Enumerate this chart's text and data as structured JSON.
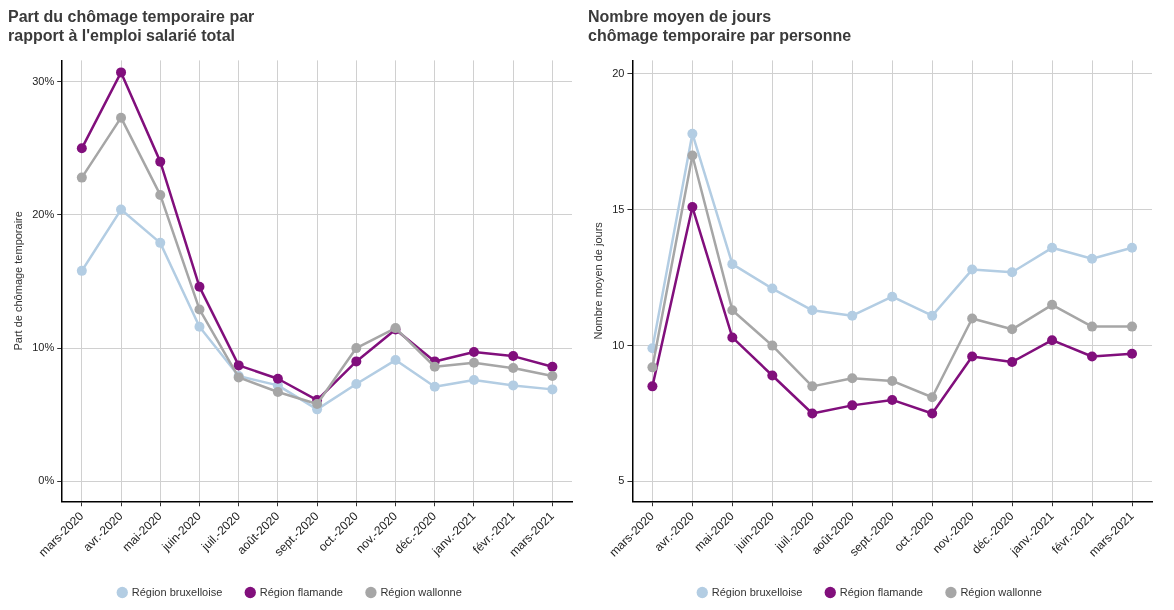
{
  "chart_data": [
    {
      "type": "line",
      "title": "Part du chômage temporaire par\nrapport à l'emploi salarié total",
      "ylabel": "Part de chômage temporaire",
      "categories": [
        "mars-2020",
        "avr.-2020",
        "mai-2020",
        "juin-2020",
        "juil.-2020",
        "août-2020",
        "sept.-2020",
        "oct.-2020",
        "nov.-2020",
        "déc.-2020",
        "janv.-2021",
        "févr.-2021",
        "mars-2021"
      ],
      "series": [
        {
          "name": "Région bruxelloise",
          "color": "#b3cde3",
          "values": [
            15.8,
            20.4,
            17.9,
            11.6,
            7.9,
            7.2,
            5.4,
            7.3,
            9.1,
            7.1,
            7.6,
            7.2,
            6.9
          ]
        },
        {
          "name": "Région flamande",
          "color": "#810f7c",
          "values": [
            25.0,
            30.7,
            24.0,
            14.6,
            8.7,
            7.7,
            6.1,
            9.0,
            11.4,
            9.0,
            9.7,
            9.4,
            8.6
          ]
        },
        {
          "name": "Région wallonne",
          "color": "#a6a6a6",
          "values": [
            22.8,
            27.3,
            21.5,
            12.9,
            7.8,
            6.7,
            5.8,
            10.0,
            11.5,
            8.6,
            8.9,
            8.5,
            7.9
          ]
        }
      ],
      "ylim": [
        -1.5,
        31.6
      ],
      "yticks": [
        {
          "value": 0,
          "label": "0%"
        },
        {
          "value": 10,
          "label": "10%"
        },
        {
          "value": 20,
          "label": "20%"
        },
        {
          "value": 30,
          "label": "30%"
        }
      ],
      "grid": true,
      "legend": "bottom",
      "marker": "circle",
      "line_style": "solid"
    },
    {
      "type": "line",
      "title": "Nombre moyen de jours\nchômage temporaire par personne",
      "ylabel": "Nombre moyen de jours",
      "categories": [
        "mars-2020",
        "avr.-2020",
        "mai-2020",
        "juin-2020",
        "juil.-2020",
        "août-2020",
        "sept.-2020",
        "oct.-2020",
        "nov.-2020",
        "déc.-2020",
        "janv.-2021",
        "févr.-2021",
        "mars-2021"
      ],
      "series": [
        {
          "name": "Région bruxelloise",
          "color": "#b3cde3",
          "values": [
            9.9,
            17.8,
            13.0,
            12.1,
            11.3,
            11.1,
            11.8,
            11.1,
            12.8,
            12.7,
            13.6,
            13.2,
            13.6
          ]
        },
        {
          "name": "Région flamande",
          "color": "#810f7c",
          "values": [
            8.5,
            15.1,
            10.3,
            8.9,
            7.5,
            7.8,
            8.0,
            7.5,
            9.6,
            9.4,
            10.2,
            9.6,
            9.7
          ]
        },
        {
          "name": "Région wallonne",
          "color": "#a6a6a6",
          "values": [
            9.2,
            17.0,
            11.3,
            10.0,
            8.5,
            8.8,
            8.7,
            8.1,
            11.0,
            10.6,
            11.5,
            10.7,
            10.7
          ]
        }
      ],
      "ylim": [
        4.27,
        20.5
      ],
      "yticks": [
        5,
        10,
        15,
        20
      ],
      "grid": true,
      "legend": "bottom",
      "marker": "circle",
      "line_style": "solid"
    }
  ]
}
